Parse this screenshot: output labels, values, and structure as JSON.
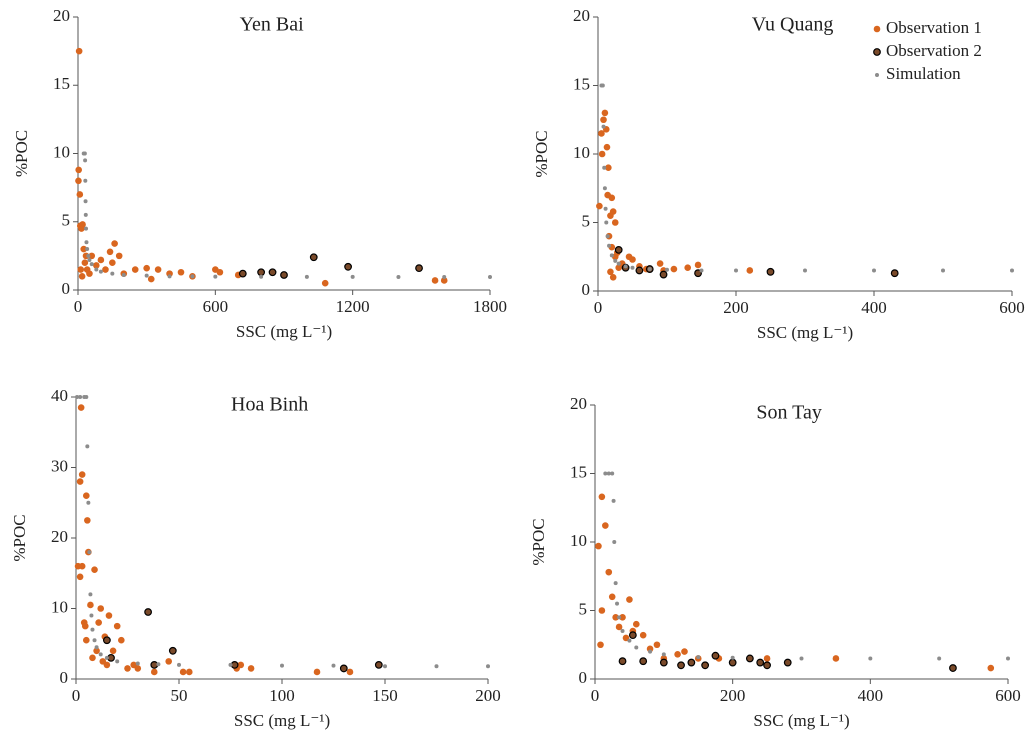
{
  "chart_data": [
    {
      "type": "scatter",
      "title": "Yen Bai",
      "x_label": "SSC (mg L⁻¹)",
      "y_label": "%POC",
      "xlim": [
        0,
        1800
      ],
      "xticks": [
        0,
        600,
        1200,
        1800
      ],
      "ylim": [
        0,
        20
      ],
      "yticks": [
        0,
        5,
        10,
        15,
        20
      ],
      "series": [
        {
          "color": "#d9661f",
          "x": [
            5,
            3,
            2,
            8,
            10,
            15,
            20,
            25,
            30,
            12,
            18,
            35,
            40,
            50,
            60,
            80,
            100,
            120,
            140,
            150,
            160,
            180,
            200,
            250,
            300,
            320,
            350,
            400,
            450,
            500,
            600,
            620,
            700,
            1080,
            1560,
            1600
          ],
          "values": [
            17.5,
            8.8,
            8,
            7,
            4.7,
            4.5,
            4.8,
            3,
            2,
            1.5,
            1,
            2.5,
            1.5,
            1.2,
            2.5,
            1.8,
            2.2,
            1.5,
            2.8,
            2,
            3.4,
            2.5,
            1.2,
            1.5,
            1.6,
            0.8,
            1.5,
            1.2,
            1.3,
            1,
            1.5,
            1.3,
            1.1,
            0.5,
            0.7,
            0.7
          ]
        },
        {
          "color": "#7a4a2a",
          "edgecolor": "#000000",
          "x": [
            720,
            800,
            850,
            900,
            1030,
            1180,
            1490
          ],
          "values": [
            1.2,
            1.3,
            1.3,
            1.1,
            2.4,
            1.7,
            1.6
          ]
        },
        {
          "color": "#8c8c8c",
          "x": [
            25,
            28,
            30,
            31,
            32,
            33,
            34,
            35,
            37,
            40,
            45,
            50,
            60,
            80,
            100,
            150,
            200,
            300,
            400,
            500,
            600,
            800,
            1000,
            1200,
            1400,
            1600,
            1800
          ],
          "values": [
            10,
            10,
            10,
            9.5,
            8,
            6.5,
            5.5,
            4.5,
            3.5,
            3,
            2.5,
            2.2,
            1.9,
            1.5,
            1.35,
            1.2,
            1.1,
            1.05,
            1,
            1,
            0.98,
            0.97,
            0.96,
            0.96,
            0.95,
            0.95,
            0.95
          ]
        }
      ]
    },
    {
      "type": "scatter",
      "title": "Vu Quang",
      "x_label": "SSC (mg L⁻¹)",
      "y_label": "%POC",
      "xlim": [
        0,
        600
      ],
      "xticks": [
        0,
        200,
        400,
        600
      ],
      "ylim": [
        0,
        20
      ],
      "yticks": [
        0,
        5,
        10,
        15,
        20
      ],
      "legend": "upper right",
      "series": [
        {
          "name": "Observation 1",
          "color": "#d9661f",
          "x": [
            2,
            5,
            6,
            8,
            10,
            12,
            13,
            15,
            14,
            18,
            20,
            22,
            25,
            16,
            20,
            25,
            28,
            30,
            18,
            22,
            35,
            45,
            50,
            60,
            70,
            90,
            95,
            110,
            130,
            145,
            220
          ],
          "values": [
            6.2,
            11.5,
            10,
            12.5,
            13,
            11.8,
            10.5,
            9,
            7,
            5.5,
            6.8,
            5.8,
            5,
            4,
            3.2,
            2.5,
            2.8,
            1.7,
            1.4,
            1,
            2,
            2.5,
            2.3,
            1.8,
            1.6,
            2,
            1.5,
            1.6,
            1.7,
            1.9,
            1.5
          ]
        },
        {
          "name": "Observation 2",
          "color": "#7a4a2a",
          "edgecolor": "#000000",
          "x": [
            30,
            40,
            60,
            75,
            95,
            145,
            250,
            430
          ],
          "values": [
            3,
            1.7,
            1.5,
            1.6,
            1.2,
            1.3,
            1.4,
            1.3
          ]
        },
        {
          "name": "Simulation",
          "color": "#8c8c8c",
          "x": [
            5,
            6,
            7,
            8,
            9,
            10,
            11,
            12,
            14,
            16,
            20,
            25,
            30,
            40,
            50,
            75,
            100,
            150,
            200,
            300,
            400,
            500,
            600
          ],
          "values": [
            15,
            15,
            15,
            12,
            9,
            7.5,
            6,
            5,
            4,
            3.3,
            2.6,
            2.2,
            2,
            1.8,
            1.7,
            1.6,
            1.55,
            1.5,
            1.5,
            1.5,
            1.5,
            1.5,
            1.5
          ]
        }
      ]
    },
    {
      "type": "scatter",
      "title": "Hoa Binh",
      "x_label": "SSC (mg L⁻¹)",
      "y_label": "%POC",
      "xlim": [
        0,
        200
      ],
      "xticks": [
        0,
        50,
        100,
        150,
        200
      ],
      "ylim": [
        0,
        40
      ],
      "yticks": [
        0,
        10,
        20,
        30,
        40
      ],
      "series": [
        {
          "color": "#d9661f",
          "x": [
            1,
            2,
            2.5,
            3,
            2,
            3,
            4,
            4.5,
            5,
            5.5,
            6,
            5,
            7,
            8,
            9,
            10,
            11,
            12,
            13,
            14,
            15,
            16,
            18,
            20,
            22,
            25,
            28,
            30,
            38,
            45,
            52,
            55,
            78,
            80,
            85,
            117,
            133
          ],
          "values": [
            16,
            28,
            38.5,
            29,
            14.5,
            16,
            8,
            7.5,
            26,
            22.5,
            18,
            5.5,
            10.5,
            3,
            15.5,
            4,
            8,
            10,
            2.5,
            6,
            2,
            9,
            4,
            7.5,
            5.5,
            1.5,
            2,
            1.5,
            1,
            2.5,
            1,
            1,
            1.5,
            2,
            1.5,
            1,
            1
          ]
        },
        {
          "color": "#7a4a2a",
          "edgecolor": "#000000",
          "x": [
            15,
            17,
            35,
            47,
            38,
            77,
            130,
            147
          ],
          "values": [
            5.5,
            3,
            9.5,
            4,
            2,
            2,
            1.5,
            2
          ]
        },
        {
          "color": "#8c8c8c",
          "x": [
            0.5,
            2,
            4,
            5,
            5.5,
            6,
            6.5,
            7,
            7.5,
            8,
            9,
            10,
            12,
            15,
            20,
            30,
            40,
            50,
            75,
            100,
            125,
            150,
            175,
            200
          ],
          "values": [
            40,
            40,
            40,
            40,
            33,
            25,
            18,
            12,
            9,
            7,
            5.5,
            4.5,
            3.5,
            3,
            2.5,
            2.2,
            2.1,
            2,
            2,
            1.9,
            1.9,
            1.8,
            1.8,
            1.8
          ]
        }
      ]
    },
    {
      "type": "scatter",
      "title": "Son Tay",
      "x_label": "SSC (mg L⁻¹)",
      "y_label": "%POC",
      "xlim": [
        0,
        600
      ],
      "xticks": [
        0,
        200,
        400,
        600
      ],
      "ylim": [
        0,
        20
      ],
      "yticks": [
        0,
        5,
        10,
        15,
        20
      ],
      "series": [
        {
          "color": "#d9661f",
          "x": [
            5,
            10,
            10,
            8,
            15,
            20,
            25,
            30,
            35,
            40,
            45,
            50,
            55,
            60,
            70,
            80,
            90,
            100,
            120,
            130,
            150,
            180,
            250,
            350,
            575
          ],
          "values": [
            9.7,
            13.3,
            5,
            2.5,
            11.2,
            7.8,
            6,
            4.5,
            3.8,
            4.5,
            3,
            5.8,
            3.5,
            4,
            3.2,
            2.2,
            2.5,
            1.5,
            1.8,
            2,
            1.5,
            1.5,
            1.5,
            1.5,
            0.8
          ]
        },
        {
          "color": "#7a4a2a",
          "edgecolor": "#000000",
          "x": [
            40,
            55,
            70,
            100,
            125,
            140,
            160,
            175,
            200,
            225,
            240,
            250,
            280,
            520
          ],
          "values": [
            1.3,
            3.2,
            1.3,
            1.2,
            1,
            1.2,
            1,
            1.7,
            1.2,
            1.5,
            1.2,
            1,
            1.2,
            0.8
          ]
        },
        {
          "color": "#8c8c8c",
          "x": [
            15,
            20,
            25,
            27,
            28,
            30,
            32,
            35,
            40,
            50,
            60,
            80,
            100,
            150,
            200,
            300,
            400,
            500,
            600
          ],
          "values": [
            15,
            15,
            15,
            13,
            10,
            7,
            5.5,
            4.5,
            3.5,
            2.8,
            2.3,
            2,
            1.8,
            1.6,
            1.55,
            1.5,
            1.5,
            1.5,
            1.5
          ]
        }
      ]
    }
  ]
}
